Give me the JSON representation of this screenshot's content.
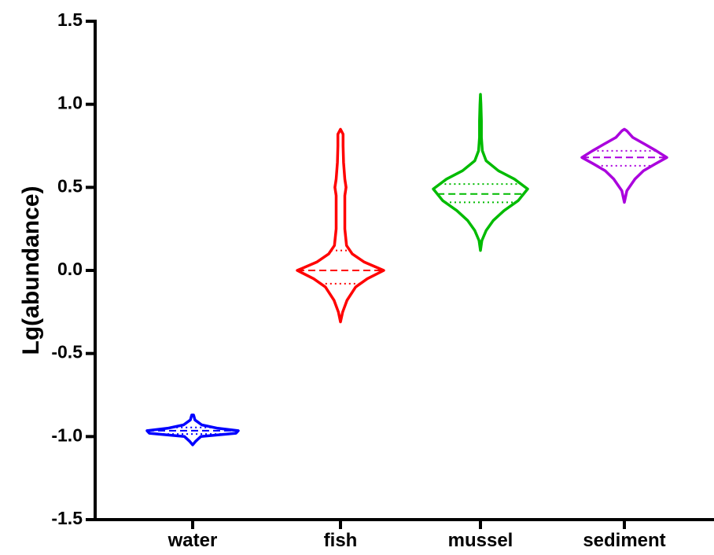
{
  "chart_data": {
    "type": "violin",
    "ylabel": "Lg(abundance)",
    "xlabel": "",
    "ylim": [
      -1.5,
      1.5
    ],
    "yticks": [
      1.5,
      1.0,
      0.5,
      0.0,
      -0.5,
      -1.0,
      -1.5
    ],
    "ytick_labels": [
      "1.5",
      "1.0",
      "0.5",
      "0.0",
      "-0.5",
      "-1.0",
      "-1.5"
    ],
    "categories": [
      "water",
      "fish",
      "mussel",
      "sediment"
    ],
    "grid": false,
    "series": [
      {
        "category": "water",
        "color": "#0000ff",
        "min": -1.05,
        "max": -0.87,
        "q1": -0.985,
        "median": -0.965,
        "q3": -0.945,
        "profile": [
          [
            -1.05,
            0.0
          ],
          [
            -1.03,
            0.06
          ],
          [
            -1.0,
            0.18
          ],
          [
            -0.98,
            0.95
          ],
          [
            -0.965,
            1.0
          ],
          [
            -0.95,
            0.55
          ],
          [
            -0.93,
            0.2
          ],
          [
            -0.9,
            0.05
          ],
          [
            -0.87,
            0.02
          ]
        ]
      },
      {
        "category": "fish",
        "color": "#ff0000",
        "min": -0.31,
        "max": 0.85,
        "q1": -0.08,
        "median": 0.0,
        "q3": 0.12,
        "profile": [
          [
            -0.31,
            0.0
          ],
          [
            -0.25,
            0.05
          ],
          [
            -0.18,
            0.15
          ],
          [
            -0.1,
            0.35
          ],
          [
            -0.05,
            0.62
          ],
          [
            0.0,
            1.0
          ],
          [
            0.05,
            0.55
          ],
          [
            0.1,
            0.27
          ],
          [
            0.15,
            0.14
          ],
          [
            0.25,
            0.1
          ],
          [
            0.35,
            0.1
          ],
          [
            0.45,
            0.1
          ],
          [
            0.5,
            0.13
          ],
          [
            0.55,
            0.1
          ],
          [
            0.65,
            0.07
          ],
          [
            0.75,
            0.06
          ],
          [
            0.82,
            0.06
          ],
          [
            0.85,
            0.0
          ]
        ]
      },
      {
        "category": "mussel",
        "color": "#00bb00",
        "min": 0.12,
        "max": 1.06,
        "q1": 0.41,
        "median": 0.46,
        "q3": 0.52,
        "profile": [
          [
            0.12,
            0.0
          ],
          [
            0.18,
            0.03
          ],
          [
            0.24,
            0.12
          ],
          [
            0.3,
            0.27
          ],
          [
            0.36,
            0.5
          ],
          [
            0.42,
            0.8
          ],
          [
            0.49,
            1.0
          ],
          [
            0.55,
            0.72
          ],
          [
            0.6,
            0.38
          ],
          [
            0.66,
            0.12
          ],
          [
            0.72,
            0.04
          ],
          [
            0.8,
            0.02
          ],
          [
            0.9,
            0.02
          ],
          [
            1.0,
            0.01
          ],
          [
            1.06,
            0.0
          ]
        ]
      },
      {
        "category": "sediment",
        "color": "#aa00dd",
        "min": 0.41,
        "max": 0.85,
        "q1": 0.63,
        "median": 0.68,
        "q3": 0.72,
        "profile": [
          [
            0.41,
            0.0
          ],
          [
            0.48,
            0.06
          ],
          [
            0.55,
            0.25
          ],
          [
            0.6,
            0.45
          ],
          [
            0.64,
            0.72
          ],
          [
            0.68,
            1.0
          ],
          [
            0.72,
            0.75
          ],
          [
            0.76,
            0.48
          ],
          [
            0.8,
            0.2
          ],
          [
            0.84,
            0.06
          ],
          [
            0.85,
            0.0
          ]
        ]
      }
    ]
  }
}
